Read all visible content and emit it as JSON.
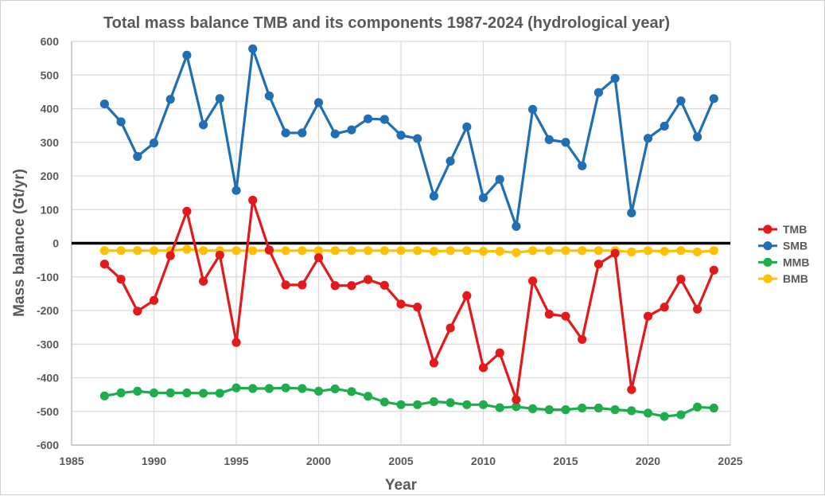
{
  "chart_data": {
    "type": "line",
    "title": "Total mass balance TMB and its components 1987-2024 (hydrological year)",
    "xlabel": "Year",
    "ylabel": "Mass balance (Gt/yr)",
    "xlim": [
      1985,
      2025
    ],
    "ylim": [
      -600,
      600
    ],
    "x_ticks": [
      "1985",
      "1990",
      "1995",
      "2000",
      "2005",
      "2010",
      "2015",
      "2020",
      "2025"
    ],
    "y_ticks": [
      "600",
      "500",
      "400",
      "300",
      "200",
      "100",
      "0",
      "-100",
      "-200",
      "-300",
      "-400",
      "-500",
      "-600"
    ],
    "grid": true,
    "zero_line": true,
    "legend_position": "right",
    "x": [
      1987,
      1988,
      1989,
      1990,
      1991,
      1992,
      1993,
      1994,
      1995,
      1996,
      1997,
      1998,
      1999,
      2000,
      2001,
      2002,
      2003,
      2004,
      2005,
      2006,
      2007,
      2008,
      2009,
      2010,
      2011,
      2012,
      2013,
      2014,
      2015,
      2016,
      2017,
      2018,
      2019,
      2020,
      2021,
      2022,
      2023,
      2024
    ],
    "series": [
      {
        "name": "TMB",
        "color": "#e31a1c",
        "values": [
          -62,
          -107,
          -202,
          -170,
          -37,
          95,
          -113,
          -35,
          -295,
          128,
          -20,
          -124,
          -124,
          -43,
          -126,
          -126,
          -108,
          -125,
          -181,
          -190,
          -356,
          -252,
          -156,
          -370,
          -326,
          -465,
          -112,
          -211,
          -217,
          -286,
          -62,
          -30,
          -435,
          -217,
          -190,
          -107,
          -196,
          -80
        ]
      },
      {
        "name": "SMB",
        "color": "#1f6fb4",
        "values": [
          414,
          361,
          258,
          298,
          428,
          559,
          352,
          430,
          157,
          578,
          438,
          328,
          328,
          418,
          325,
          337,
          370,
          368,
          321,
          311,
          140,
          244,
          346,
          135,
          190,
          50,
          398,
          308,
          300,
          230,
          448,
          490,
          90,
          312,
          348,
          423,
          316,
          430
        ]
      },
      {
        "name": "MMB",
        "color": "#1fad4c",
        "values": [
          -454,
          -445,
          -440,
          -445,
          -445,
          -445,
          -446,
          -446,
          -430,
          -432,
          -432,
          -430,
          -432,
          -440,
          -433,
          -441,
          -455,
          -472,
          -480,
          -480,
          -471,
          -474,
          -480,
          -480,
          -489,
          -486,
          -492,
          -495,
          -495,
          -490,
          -490,
          -495,
          -498,
          -505,
          -515,
          -510,
          -487,
          -490
        ]
      },
      {
        "name": "BMB",
        "color": "#ffc000",
        "values": [
          -22,
          -22,
          -22,
          -22,
          -22,
          -18,
          -22,
          -22,
          -22,
          -22,
          -22,
          -22,
          -22,
          -22,
          -22,
          -22,
          -22,
          -22,
          -22,
          -22,
          -24,
          -22,
          -22,
          -24,
          -24,
          -28,
          -22,
          -22,
          -22,
          -22,
          -22,
          -22,
          -26,
          -22,
          -24,
          -22,
          -26,
          -22
        ]
      }
    ]
  }
}
